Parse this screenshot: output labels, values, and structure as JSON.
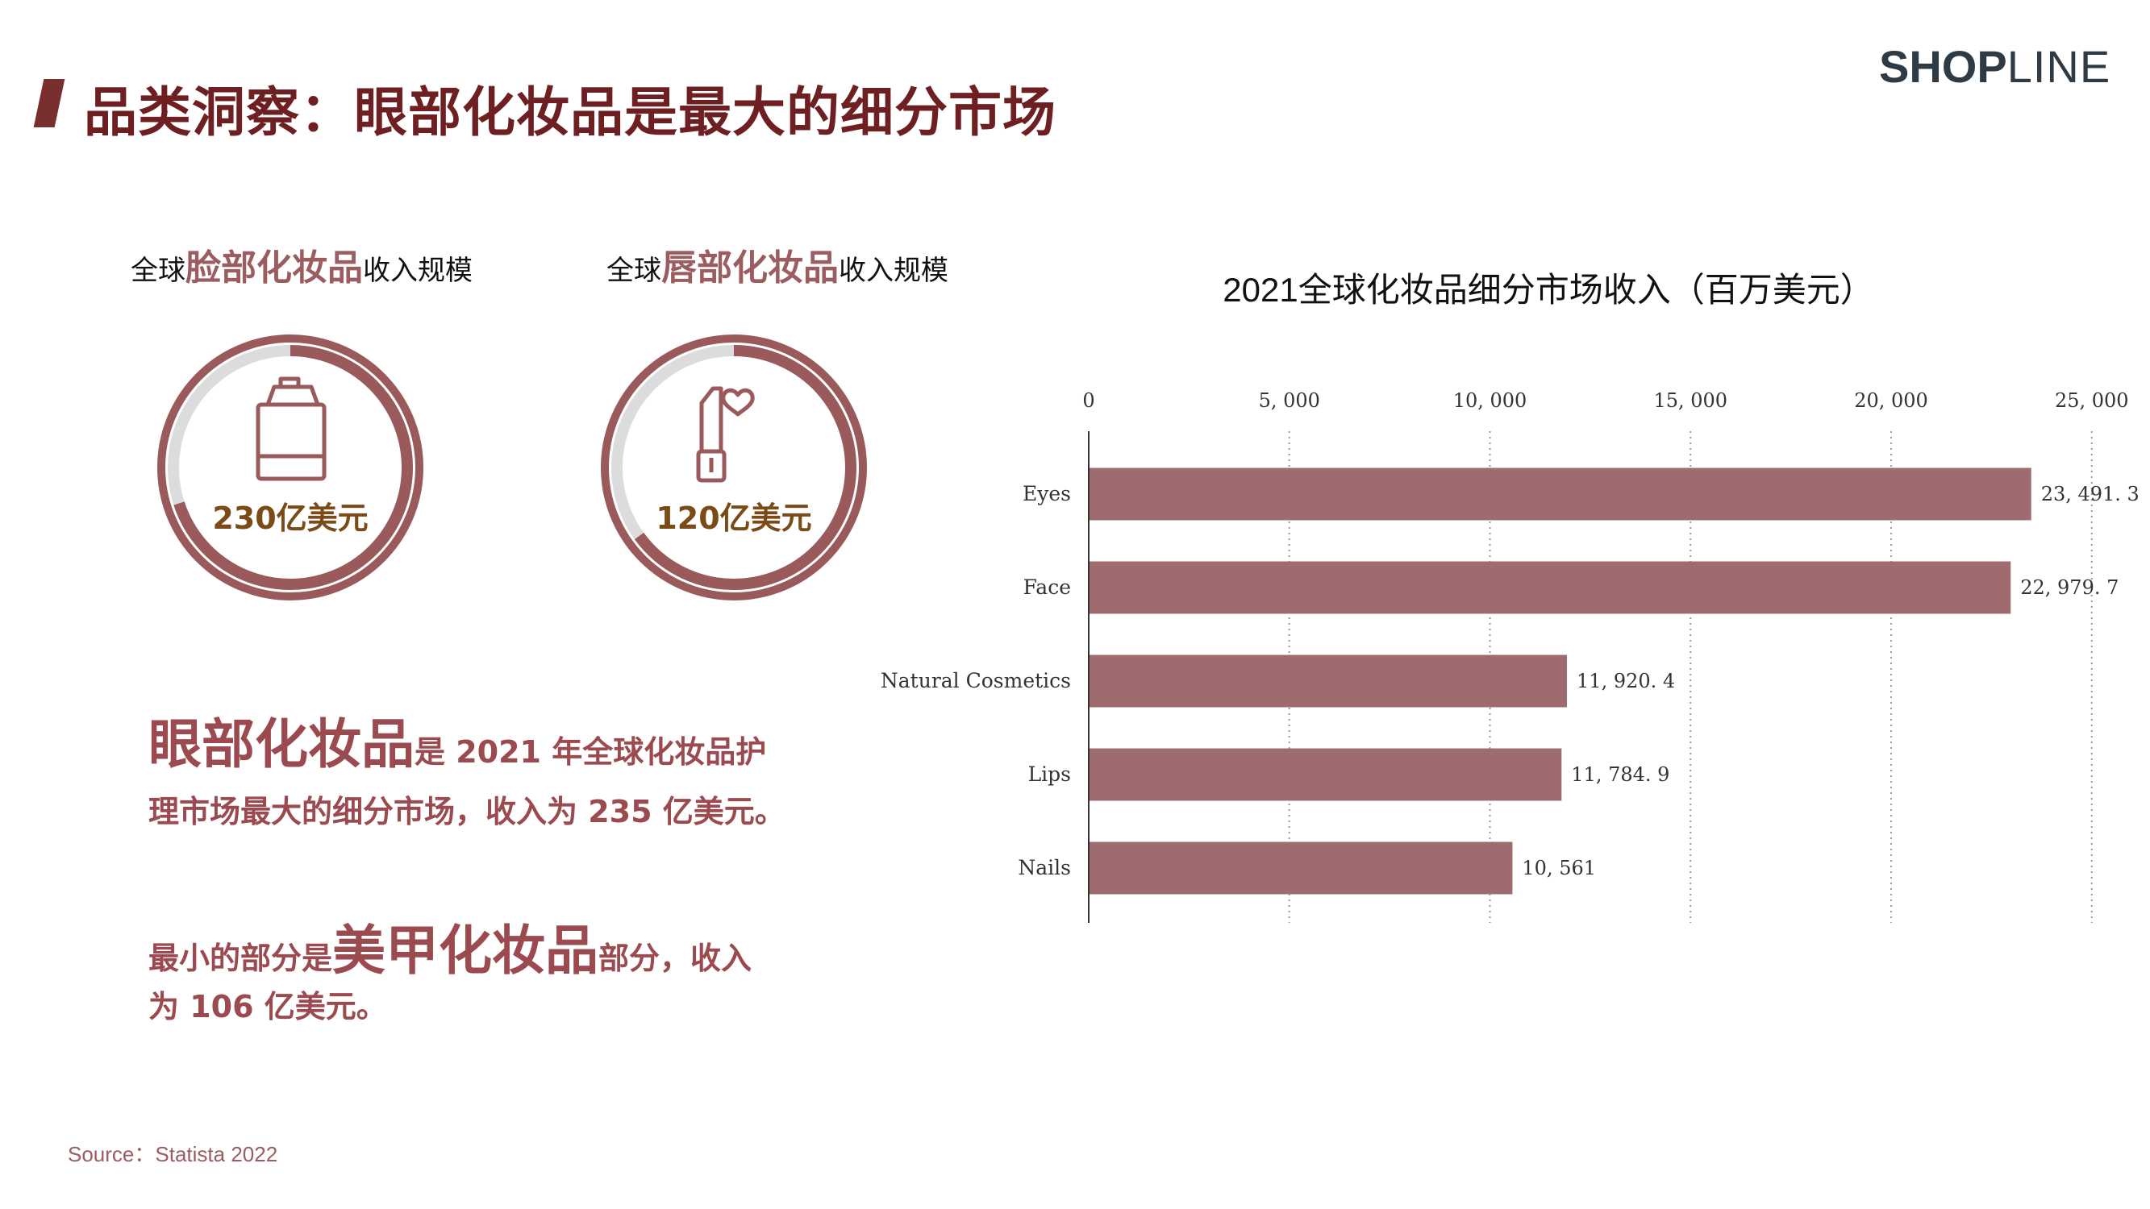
{
  "header": {
    "title": "品类洞察：眼部化妆品是最大的细分市场",
    "logo_bold": "SH",
    "logo_mid": "OP",
    "logo_thin": "LINE"
  },
  "donuts": [
    {
      "label_prefix": "全球",
      "label_highlight": "脸部化妆品",
      "label_suffix": "收入规模",
      "value_text": "230亿美元",
      "fill_fraction": 0.7,
      "icon": "foundation-bottle-icon"
    },
    {
      "label_prefix": "全球",
      "label_highlight": "唇部化妆品",
      "label_suffix": "收入规模",
      "value_text": "120亿美元",
      "fill_fraction": 0.65,
      "icon": "lipstick-heart-icon"
    }
  ],
  "summary": {
    "p1_big": "眼部化妆品",
    "p1_small": "是 2021 年全球化妆品护",
    "p2": "理市场最大的细分市场，收入为 235 亿美元。",
    "p3_small_a": "最小的部分是",
    "p3_big": "美甲化妆品",
    "p3_small_b": "部分，收入",
    "p4": "为 106 亿美元。"
  },
  "source": "Source：Statista 2022",
  "colors": {
    "bar": "#9e6b6e",
    "accent": "#9b4a4f",
    "title": "#6d1f22",
    "ring_track": "#dcdcdc",
    "ring_fill": "#9a5a5c"
  },
  "chart_data": {
    "type": "bar",
    "orientation": "horizontal",
    "title": "2021全球化妆品细分市场收入（百万美元）",
    "categories": [
      "Eyes",
      "Face",
      "Natural Cosmetics",
      "Lips",
      "Nails"
    ],
    "values": [
      23491.3,
      22979.7,
      11920.4,
      11784.9,
      10561
    ],
    "value_labels": [
      "23, 491. 3",
      "22, 979. 7",
      "11, 920. 4",
      "11, 784. 9",
      "10, 561"
    ],
    "xticks": [
      0,
      5000,
      10000,
      15000,
      20000,
      25000
    ],
    "xtick_labels": [
      "0",
      "5, 000",
      "10, 000",
      "15, 000",
      "20, 000",
      "25, 000"
    ],
    "xlim": [
      0,
      25000
    ],
    "xaxis_position": "top",
    "grid": "vertical dotted",
    "legend": "none"
  }
}
